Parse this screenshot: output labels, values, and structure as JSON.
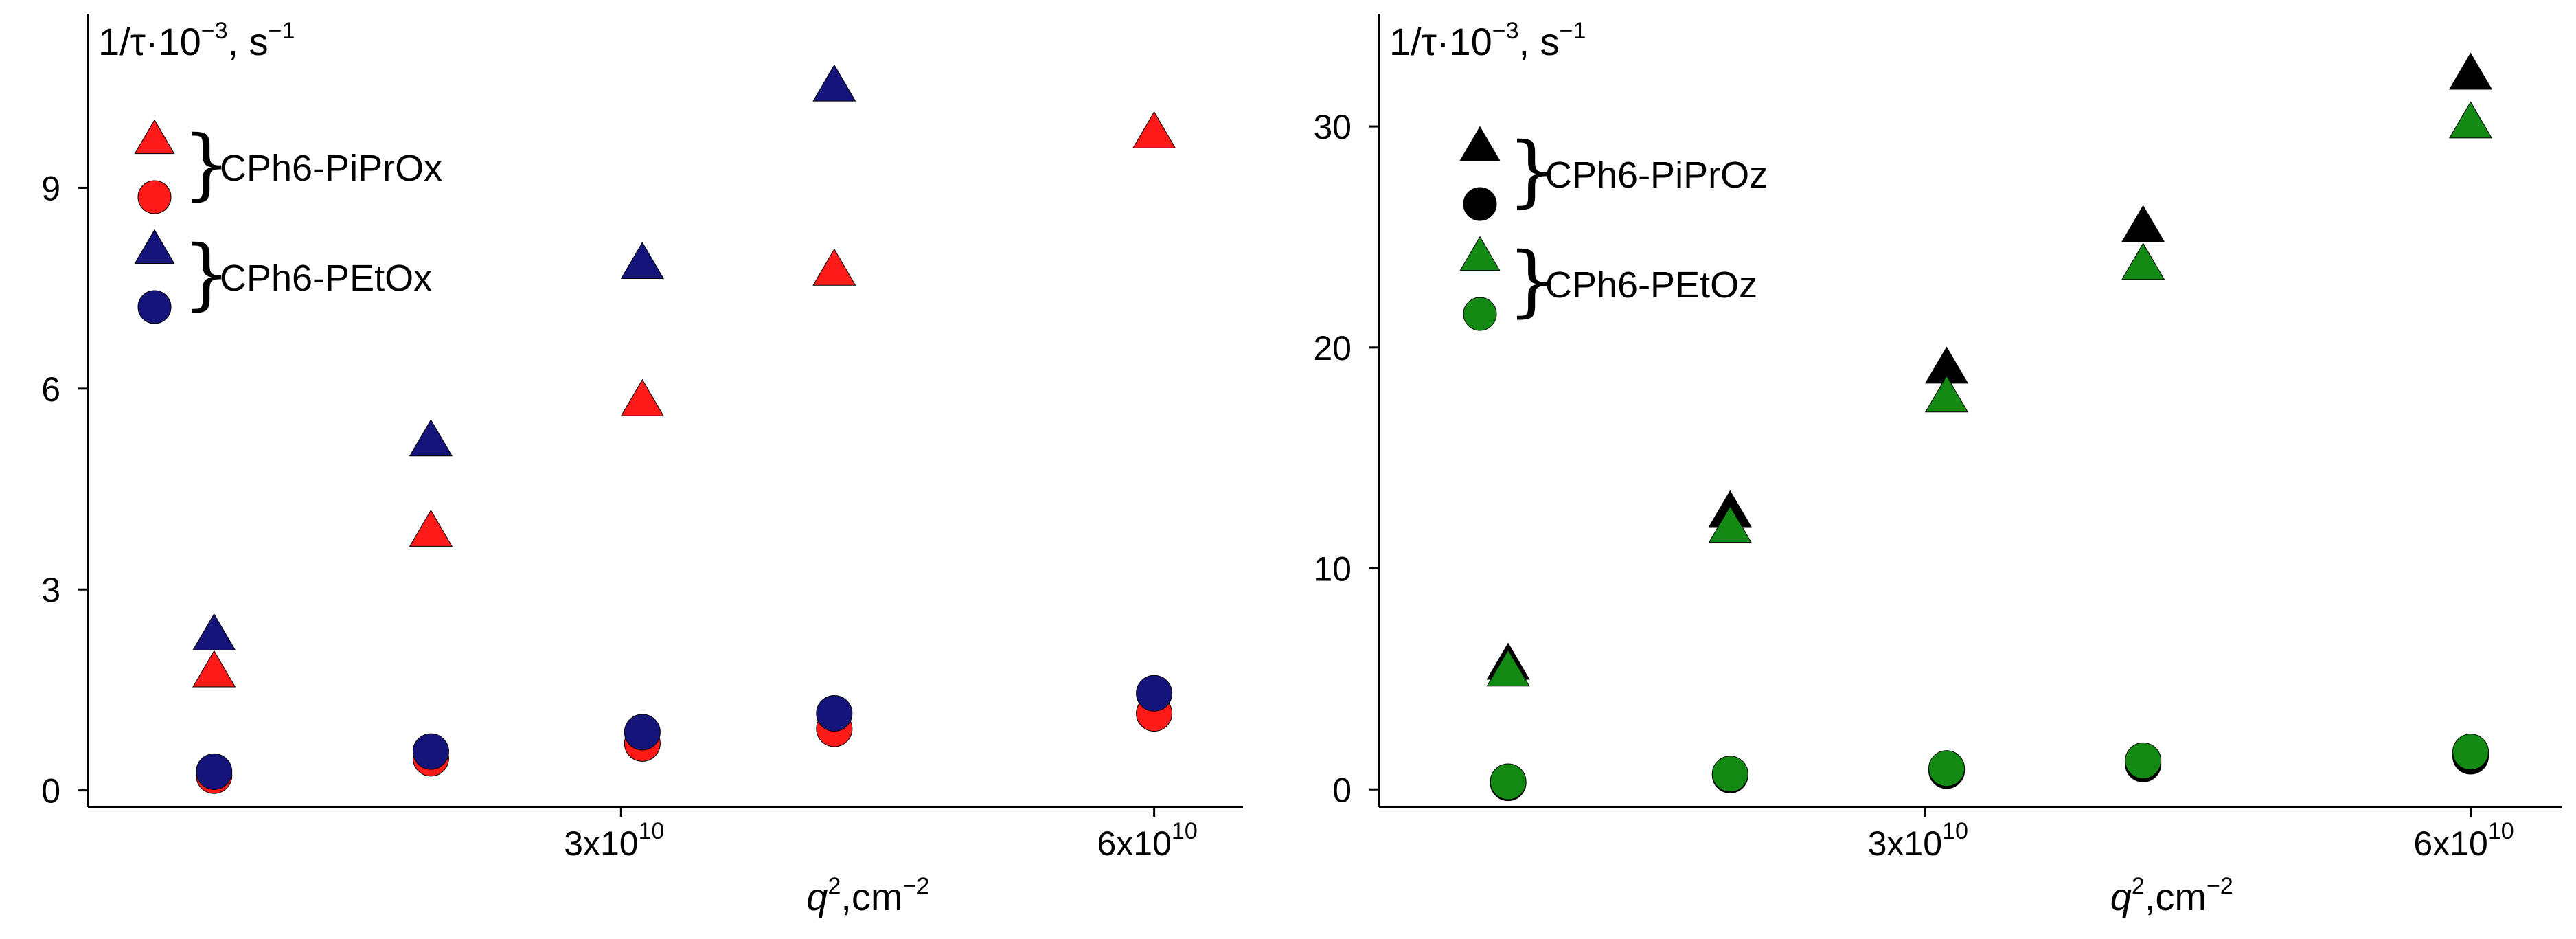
{
  "chart_data": [
    {
      "type": "scatter",
      "title": "",
      "ylabel_prefix": "1/τ·10",
      "ylabel_exp": "−3",
      "ylabel_unit": ", s",
      "ylabel_unit_exp": "−1",
      "xlabel_var": "q",
      "xlabel_exp": "2",
      "xlabel_unit": ",cm",
      "xlabel_unit_exp": "−2",
      "xlim": [
        0,
        65000000000
      ],
      "ylim": [
        -0.25,
        11.6
      ],
      "x_ticks": [
        {
          "value": 30000000000,
          "mantissa": "3x10",
          "exp": "10"
        },
        {
          "value": 60000000000,
          "mantissa": "6x10",
          "exp": "10"
        }
      ],
      "y_ticks": [
        {
          "value": 0,
          "label": "0"
        },
        {
          "value": 3,
          "label": "3"
        },
        {
          "value": 6,
          "label": "6"
        },
        {
          "value": 9,
          "label": "9"
        }
      ],
      "legend": [
        {
          "label": "CPh6-PiPrOx",
          "color": "#ff1a1a",
          "markers": [
            "triangle",
            "circle"
          ]
        },
        {
          "label": "CPh6-PEtOx",
          "color": "#14147a",
          "markers": [
            "triangle",
            "circle"
          ]
        }
      ],
      "series": [
        {
          "color": "#ff1a1a",
          "marker": "triangle",
          "x": [
            7100000000,
            19300000000,
            31200000000,
            42000000000,
            60000000000
          ],
          "y": [
            1.75,
            3.85,
            5.8,
            7.75,
            9.8
          ]
        },
        {
          "color": "#ff1a1a",
          "marker": "circle",
          "x": [
            7100000000,
            19300000000,
            31200000000,
            42000000000,
            60000000000
          ],
          "y": [
            0.22,
            0.48,
            0.7,
            0.92,
            1.15
          ]
        },
        {
          "color": "#14147a",
          "marker": "triangle",
          "x": [
            7100000000,
            19300000000,
            31200000000,
            42000000000
          ],
          "y": [
            2.3,
            5.2,
            7.85,
            10.5
          ]
        },
        {
          "color": "#14147a",
          "marker": "circle",
          "x": [
            7100000000,
            19300000000,
            31200000000,
            42000000000,
            60000000000
          ],
          "y": [
            0.28,
            0.58,
            0.87,
            1.15,
            1.45
          ]
        }
      ]
    },
    {
      "type": "scatter",
      "title": "",
      "ylabel_prefix": "1/τ·10",
      "ylabel_exp": "−3",
      "ylabel_unit": ", s",
      "ylabel_unit_exp": "−1",
      "xlabel_var": "q",
      "xlabel_exp": "2",
      "xlabel_unit": ",cm",
      "xlabel_unit_exp": "−2",
      "xlim": [
        0,
        65000000000
      ],
      "ylim": [
        -0.8,
        35.1
      ],
      "x_ticks": [
        {
          "value": 30000000000,
          "mantissa": "3x10",
          "exp": "10"
        },
        {
          "value": 60000000000,
          "mantissa": "6x10",
          "exp": "10"
        }
      ],
      "y_ticks": [
        {
          "value": 0,
          "label": "0"
        },
        {
          "value": 10,
          "label": "10"
        },
        {
          "value": 20,
          "label": "20"
        },
        {
          "value": 30,
          "label": "30"
        }
      ],
      "legend": [
        {
          "label": "CPh6-PiPrOz",
          "color": "#000000",
          "markers": [
            "triangle",
            "circle"
          ]
        },
        {
          "label": "CPh6-PEtOz",
          "color": "#138a13",
          "markers": [
            "triangle",
            "circle"
          ]
        }
      ],
      "series": [
        {
          "color": "#000000",
          "marker": "triangle",
          "x": [
            7100000000,
            19300000000,
            31200000000,
            42000000000,
            60000000000
          ],
          "y": [
            5.6,
            12.5,
            19.0,
            25.4,
            32.3
          ]
        },
        {
          "color": "#000000",
          "marker": "circle",
          "x": [
            7100000000,
            19300000000,
            31200000000,
            42000000000,
            60000000000
          ],
          "y": [
            0.3,
            0.65,
            0.85,
            1.15,
            1.5
          ]
        },
        {
          "color": "#138a13",
          "marker": "triangle",
          "x": [
            7100000000,
            19300000000,
            31200000000,
            42000000000,
            60000000000
          ],
          "y": [
            5.3,
            11.8,
            17.7,
            23.7,
            30.1
          ]
        },
        {
          "color": "#138a13",
          "marker": "circle",
          "x": [
            7100000000,
            19300000000,
            31200000000,
            42000000000,
            60000000000
          ],
          "y": [
            0.35,
            0.7,
            0.95,
            1.3,
            1.7
          ]
        }
      ]
    }
  ]
}
